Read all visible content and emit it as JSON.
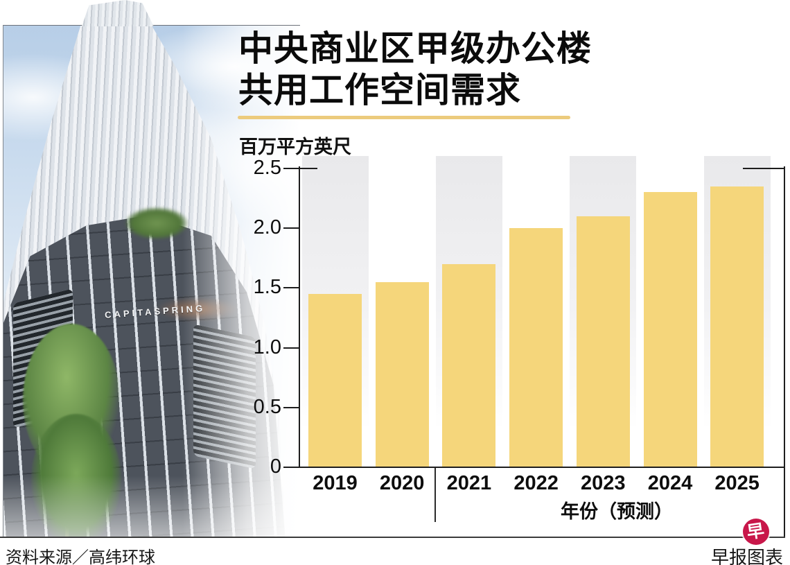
{
  "title": {
    "line1": "中央商业区甲级办公楼",
    "line2": "共用工作空间需求"
  },
  "chart_data": {
    "type": "bar",
    "title": "中央商业区甲级办公楼共用工作空间需求",
    "unit_label": "百万平方英尺",
    "categories": [
      "2019",
      "2020",
      "2021",
      "2022",
      "2023",
      "2024",
      "2025"
    ],
    "values": [
      1.45,
      1.55,
      1.7,
      2.0,
      2.1,
      2.3,
      2.35
    ],
    "xlabel": "年份（预测）",
    "ylabel": "百万平方英尺",
    "ylim": [
      0,
      2.5
    ],
    "yticks": [
      2.5,
      2.0,
      1.5,
      1.0,
      0.5,
      0
    ],
    "forecast_from": "2021",
    "actual_years": [
      "2019",
      "2020"
    ],
    "grid": false,
    "legend_position": "none",
    "bar_color": "#F5D67B",
    "backdrop_color": "#E9E9EB"
  },
  "photo": {
    "building_sign": "CAPITASPRING"
  },
  "accent": {
    "underline_color": "#ECCB7D"
  },
  "footer": {
    "source": "资料来源／高纬环球",
    "credit": "早报图表",
    "logo_char": "早",
    "logo_color": "#C8174A"
  }
}
